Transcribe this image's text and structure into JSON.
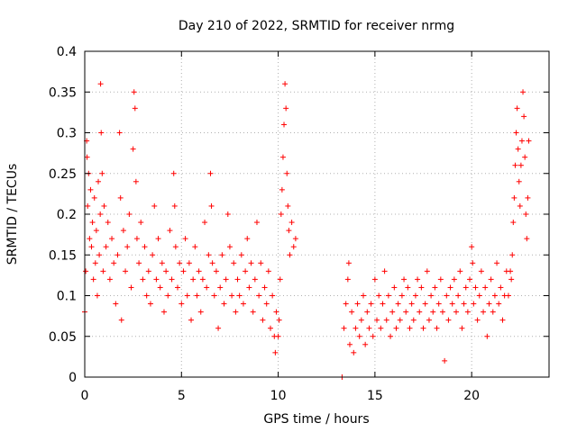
{
  "chart_data": {
    "type": "scatter",
    "title": "Day 210 of 2022, SRMTID for receiver nrmg",
    "xlabel": "GPS time / hours",
    "ylabel": "SRMTID / TECUs",
    "xlim": [
      0,
      24
    ],
    "ylim": [
      0,
      0.4
    ],
    "xticks": [
      0,
      5,
      10,
      15,
      20
    ],
    "xtick_labels": [
      "0",
      "5",
      "10",
      "15",
      "20"
    ],
    "yticks": [
      0,
      0.05,
      0.1,
      0.15,
      0.2,
      0.25,
      0.3,
      0.35,
      0.4
    ],
    "ytick_labels": [
      "0",
      "0.05",
      "0.1",
      "0.15",
      "0.2",
      "0.25",
      "0.3",
      "0.35",
      "0.4"
    ],
    "grid": true,
    "marker": "plus",
    "marker_color": "#ff0000",
    "series": [
      {
        "name": "SRMTID",
        "points": [
          [
            0.0,
            0.08
          ],
          [
            0.05,
            0.13
          ],
          [
            0.1,
            0.29
          ],
          [
            0.12,
            0.27
          ],
          [
            0.15,
            0.21
          ],
          [
            0.2,
            0.25
          ],
          [
            0.25,
            0.17
          ],
          [
            0.3,
            0.23
          ],
          [
            0.35,
            0.16
          ],
          [
            0.4,
            0.19
          ],
          [
            0.45,
            0.12
          ],
          [
            0.5,
            0.22
          ],
          [
            0.55,
            0.14
          ],
          [
            0.6,
            0.18
          ],
          [
            0.65,
            0.1
          ],
          [
            0.7,
            0.24
          ],
          [
            0.75,
            0.15
          ],
          [
            0.8,
            0.2
          ],
          [
            0.82,
            0.36
          ],
          [
            0.85,
            0.3
          ],
          [
            0.9,
            0.25
          ],
          [
            0.95,
            0.13
          ],
          [
            1.0,
            0.21
          ],
          [
            1.1,
            0.16
          ],
          [
            1.2,
            0.19
          ],
          [
            1.3,
            0.12
          ],
          [
            1.4,
            0.17
          ],
          [
            1.5,
            0.14
          ],
          [
            1.6,
            0.09
          ],
          [
            1.7,
            0.15
          ],
          [
            1.8,
            0.3
          ],
          [
            1.85,
            0.22
          ],
          [
            1.9,
            0.07
          ],
          [
            2.0,
            0.18
          ],
          [
            2.1,
            0.13
          ],
          [
            2.2,
            0.16
          ],
          [
            2.3,
            0.2
          ],
          [
            2.4,
            0.11
          ],
          [
            2.5,
            0.28
          ],
          [
            2.55,
            0.35
          ],
          [
            2.6,
            0.33
          ],
          [
            2.65,
            0.24
          ],
          [
            2.7,
            0.17
          ],
          [
            2.8,
            0.14
          ],
          [
            2.9,
            0.19
          ],
          [
            3.0,
            0.12
          ],
          [
            3.1,
            0.16
          ],
          [
            3.2,
            0.1
          ],
          [
            3.3,
            0.13
          ],
          [
            3.4,
            0.09
          ],
          [
            3.5,
            0.15
          ],
          [
            3.6,
            0.21
          ],
          [
            3.7,
            0.12
          ],
          [
            3.8,
            0.17
          ],
          [
            3.9,
            0.11
          ],
          [
            4.0,
            0.14
          ],
          [
            4.1,
            0.08
          ],
          [
            4.2,
            0.13
          ],
          [
            4.3,
            0.1
          ],
          [
            4.4,
            0.18
          ],
          [
            4.5,
            0.12
          ],
          [
            4.6,
            0.25
          ],
          [
            4.65,
            0.21
          ],
          [
            4.7,
            0.16
          ],
          [
            4.8,
            0.11
          ],
          [
            4.9,
            0.14
          ],
          [
            5.0,
            0.09
          ],
          [
            5.1,
            0.13
          ],
          [
            5.2,
            0.17
          ],
          [
            5.3,
            0.1
          ],
          [
            5.4,
            0.14
          ],
          [
            5.5,
            0.07
          ],
          [
            5.6,
            0.12
          ],
          [
            5.7,
            0.16
          ],
          [
            5.8,
            0.1
          ],
          [
            5.9,
            0.13
          ],
          [
            6.0,
            0.08
          ],
          [
            6.1,
            0.12
          ],
          [
            6.2,
            0.19
          ],
          [
            6.3,
            0.11
          ],
          [
            6.4,
            0.15
          ],
          [
            6.5,
            0.25
          ],
          [
            6.55,
            0.21
          ],
          [
            6.6,
            0.14
          ],
          [
            6.7,
            0.1
          ],
          [
            6.8,
            0.13
          ],
          [
            6.9,
            0.06
          ],
          [
            7.0,
            0.11
          ],
          [
            7.1,
            0.15
          ],
          [
            7.2,
            0.09
          ],
          [
            7.3,
            0.12
          ],
          [
            7.4,
            0.2
          ],
          [
            7.5,
            0.16
          ],
          [
            7.6,
            0.1
          ],
          [
            7.7,
            0.14
          ],
          [
            7.8,
            0.08
          ],
          [
            7.9,
            0.12
          ],
          [
            8.0,
            0.1
          ],
          [
            8.1,
            0.15
          ],
          [
            8.2,
            0.09
          ],
          [
            8.3,
            0.13
          ],
          [
            8.4,
            0.17
          ],
          [
            8.5,
            0.11
          ],
          [
            8.6,
            0.14
          ],
          [
            8.7,
            0.08
          ],
          [
            8.8,
            0.12
          ],
          [
            8.9,
            0.19
          ],
          [
            9.0,
            0.1
          ],
          [
            9.1,
            0.14
          ],
          [
            9.2,
            0.07
          ],
          [
            9.3,
            0.11
          ],
          [
            9.4,
            0.09
          ],
          [
            9.5,
            0.13
          ],
          [
            9.6,
            0.06
          ],
          [
            9.7,
            0.1
          ],
          [
            9.8,
            0.05
          ],
          [
            9.85,
            0.03
          ],
          [
            9.9,
            0.08
          ],
          [
            10.0,
            0.05
          ],
          [
            10.05,
            0.07
          ],
          [
            10.1,
            0.12
          ],
          [
            10.15,
            0.2
          ],
          [
            10.2,
            0.23
          ],
          [
            10.25,
            0.27
          ],
          [
            10.3,
            0.31
          ],
          [
            10.35,
            0.36
          ],
          [
            10.4,
            0.33
          ],
          [
            10.45,
            0.25
          ],
          [
            10.5,
            0.21
          ],
          [
            10.55,
            0.18
          ],
          [
            10.6,
            0.15
          ],
          [
            10.7,
            0.19
          ],
          [
            10.8,
            0.16
          ],
          [
            10.9,
            0.17
          ],
          [
            13.3,
            0.0
          ],
          [
            13.4,
            0.06
          ],
          [
            13.5,
            0.09
          ],
          [
            13.6,
            0.12
          ],
          [
            13.65,
            0.14
          ],
          [
            13.7,
            0.04
          ],
          [
            13.8,
            0.08
          ],
          [
            13.9,
            0.03
          ],
          [
            14.0,
            0.06
          ],
          [
            14.1,
            0.09
          ],
          [
            14.2,
            0.05
          ],
          [
            14.3,
            0.07
          ],
          [
            14.4,
            0.1
          ],
          [
            14.5,
            0.04
          ],
          [
            14.6,
            0.08
          ],
          [
            14.7,
            0.06
          ],
          [
            14.8,
            0.09
          ],
          [
            14.9,
            0.05
          ],
          [
            15.0,
            0.12
          ],
          [
            15.1,
            0.07
          ],
          [
            15.2,
            0.1
          ],
          [
            15.3,
            0.06
          ],
          [
            15.4,
            0.09
          ],
          [
            15.5,
            0.13
          ],
          [
            15.6,
            0.07
          ],
          [
            15.7,
            0.1
          ],
          [
            15.8,
            0.05
          ],
          [
            15.9,
            0.08
          ],
          [
            16.0,
            0.11
          ],
          [
            16.1,
            0.06
          ],
          [
            16.2,
            0.09
          ],
          [
            16.3,
            0.07
          ],
          [
            16.4,
            0.1
          ],
          [
            16.5,
            0.12
          ],
          [
            16.6,
            0.08
          ],
          [
            16.7,
            0.11
          ],
          [
            16.8,
            0.06
          ],
          [
            16.9,
            0.09
          ],
          [
            17.0,
            0.07
          ],
          [
            17.1,
            0.1
          ],
          [
            17.2,
            0.12
          ],
          [
            17.3,
            0.08
          ],
          [
            17.4,
            0.11
          ],
          [
            17.5,
            0.06
          ],
          [
            17.6,
            0.09
          ],
          [
            17.7,
            0.13
          ],
          [
            17.8,
            0.07
          ],
          [
            17.9,
            0.1
          ],
          [
            18.0,
            0.08
          ],
          [
            18.1,
            0.11
          ],
          [
            18.2,
            0.06
          ],
          [
            18.3,
            0.09
          ],
          [
            18.4,
            0.12
          ],
          [
            18.5,
            0.08
          ],
          [
            18.6,
            0.02
          ],
          [
            18.7,
            0.1
          ],
          [
            18.8,
            0.07
          ],
          [
            18.9,
            0.11
          ],
          [
            19.0,
            0.09
          ],
          [
            19.1,
            0.12
          ],
          [
            19.2,
            0.08
          ],
          [
            19.3,
            0.1
          ],
          [
            19.4,
            0.13
          ],
          [
            19.5,
            0.06
          ],
          [
            19.6,
            0.09
          ],
          [
            19.7,
            0.11
          ],
          [
            19.8,
            0.08
          ],
          [
            19.9,
            0.12
          ],
          [
            20.0,
            0.16
          ],
          [
            20.05,
            0.14
          ],
          [
            20.1,
            0.09
          ],
          [
            20.2,
            0.11
          ],
          [
            20.3,
            0.07
          ],
          [
            20.4,
            0.1
          ],
          [
            20.5,
            0.13
          ],
          [
            20.6,
            0.08
          ],
          [
            20.7,
            0.11
          ],
          [
            20.8,
            0.05
          ],
          [
            20.9,
            0.09
          ],
          [
            21.0,
            0.12
          ],
          [
            21.1,
            0.08
          ],
          [
            21.2,
            0.1
          ],
          [
            21.3,
            0.14
          ],
          [
            21.4,
            0.09
          ],
          [
            21.5,
            0.11
          ],
          [
            21.6,
            0.07
          ],
          [
            21.7,
            0.1
          ],
          [
            21.8,
            0.13
          ],
          [
            21.9,
            0.1
          ],
          [
            22.0,
            0.13
          ],
          [
            22.05,
            0.12
          ],
          [
            22.1,
            0.15
          ],
          [
            22.15,
            0.19
          ],
          [
            22.2,
            0.22
          ],
          [
            22.25,
            0.26
          ],
          [
            22.3,
            0.3
          ],
          [
            22.35,
            0.33
          ],
          [
            22.4,
            0.28
          ],
          [
            22.45,
            0.24
          ],
          [
            22.5,
            0.21
          ],
          [
            22.55,
            0.26
          ],
          [
            22.6,
            0.29
          ],
          [
            22.65,
            0.35
          ],
          [
            22.7,
            0.32
          ],
          [
            22.75,
            0.27
          ],
          [
            22.8,
            0.2
          ],
          [
            22.85,
            0.17
          ],
          [
            22.9,
            0.22
          ],
          [
            22.95,
            0.29
          ]
        ]
      }
    ]
  }
}
